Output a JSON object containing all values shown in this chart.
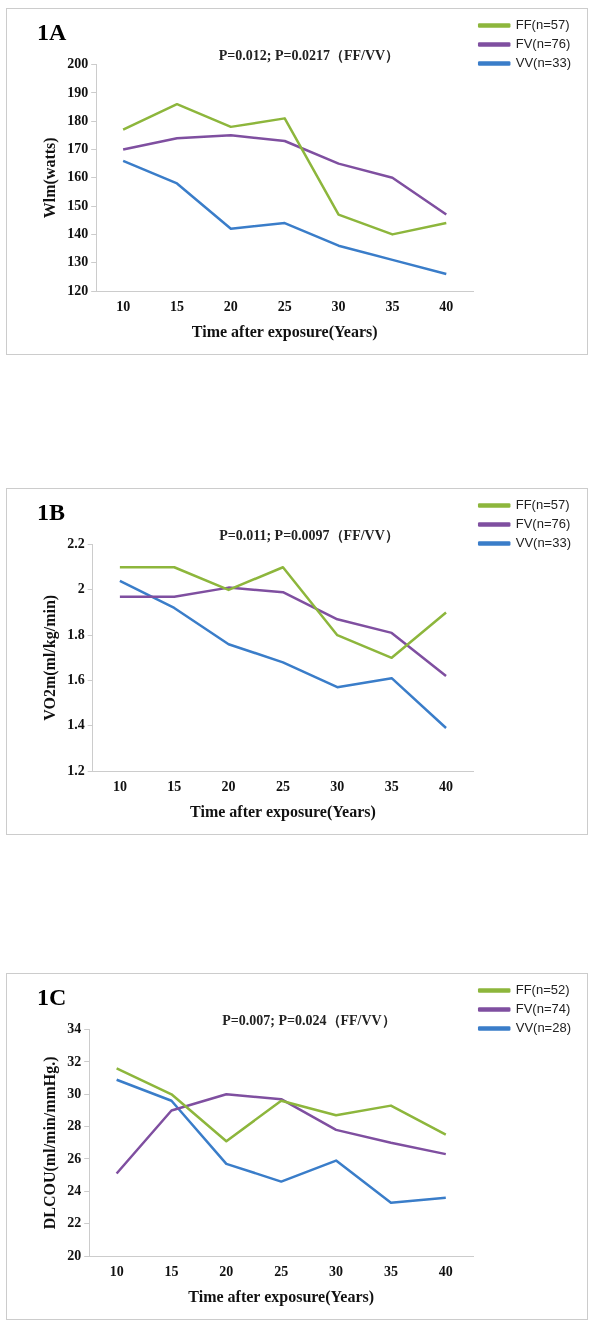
{
  "chart_data": [
    {
      "type": "line",
      "title": "1A",
      "subtitle": "P=0.012; P=0.0217（FF/VV）",
      "xlabel": "Time after exposure(Years)",
      "ylabel": "Wlm(watts)",
      "categories": [
        "10",
        "15",
        "20",
        "25",
        "30",
        "35",
        "40"
      ],
      "series": [
        {
          "name": "FF(n=57)",
          "color": "#8db63c",
          "values": [
            177,
            186,
            178,
            181,
            147,
            140,
            144
          ]
        },
        {
          "name": "FV(n=76)",
          "color": "#7f4fa0",
          "values": [
            170,
            174,
            175,
            173,
            165,
            160,
            147
          ]
        },
        {
          "name": "VV(n=33)",
          "color": "#3a7dc9",
          "values": [
            166,
            158,
            142,
            144,
            136,
            131,
            126
          ]
        }
      ],
      "ylim": [
        120,
        200
      ],
      "yticks": [
        120,
        130,
        140,
        150,
        160,
        170,
        180,
        190,
        200
      ],
      "grid": false,
      "legend": "top right",
      "marker": "none",
      "line_style": "solid"
    },
    {
      "type": "line",
      "title": "1B",
      "subtitle": "P=0.011; P=0.0097（FF/VV）",
      "xlabel": "Time after exposure(Years)",
      "ylabel": "VO2m(ml/kg/min)",
      "categories": [
        "10",
        "15",
        "20",
        "25",
        "30",
        "35",
        "40"
      ],
      "series": [
        {
          "name": "FF(n=57)",
          "color": "#8db63c",
          "values": [
            2.1,
            2.1,
            2.0,
            2.1,
            1.8,
            1.7,
            1.9
          ]
        },
        {
          "name": "FV(n=76)",
          "color": "#7f4fa0",
          "values": [
            1.97,
            1.97,
            2.01,
            1.99,
            1.87,
            1.81,
            1.62
          ]
        },
        {
          "name": "VV(n=33)",
          "color": "#3a7dc9",
          "values": [
            2.04,
            1.92,
            1.76,
            1.68,
            1.57,
            1.61,
            1.39
          ]
        }
      ],
      "ylim": [
        1.2,
        2.2
      ],
      "yticks": [
        1.2,
        1.4,
        1.6,
        1.8,
        2,
        2.2
      ],
      "grid": false,
      "legend": "top right",
      "marker": "none",
      "line_style": "solid"
    },
    {
      "type": "line",
      "title": "1C",
      "subtitle": "P=0.007; P=0.024（FF/VV）",
      "xlabel": "Time after exposure(Years)",
      "ylabel": "DLCOU(ml/min/mmHg.)",
      "categories": [
        "10",
        "15",
        "20",
        "25",
        "30",
        "35",
        "40"
      ],
      "series": [
        {
          "name": "FF(n=52)",
          "color": "#8db63c",
          "values": [
            31.6,
            30,
            27.1,
            29.6,
            28.7,
            29.3,
            27.5
          ]
        },
        {
          "name": "FV(n=74)",
          "color": "#7f4fa0",
          "values": [
            25.1,
            29,
            30,
            29.7,
            27.8,
            27,
            26.3
          ]
        },
        {
          "name": "VV(n=28)",
          "color": "#3a7dc9",
          "values": [
            30.9,
            29.6,
            25.7,
            24.6,
            25.9,
            23.3,
            23.6
          ]
        }
      ],
      "ylim": [
        20,
        34
      ],
      "yticks": [
        20,
        22,
        24,
        26,
        28,
        30,
        32,
        34
      ],
      "grid": false,
      "legend": "top right",
      "marker": "none",
      "line_style": "solid"
    }
  ]
}
